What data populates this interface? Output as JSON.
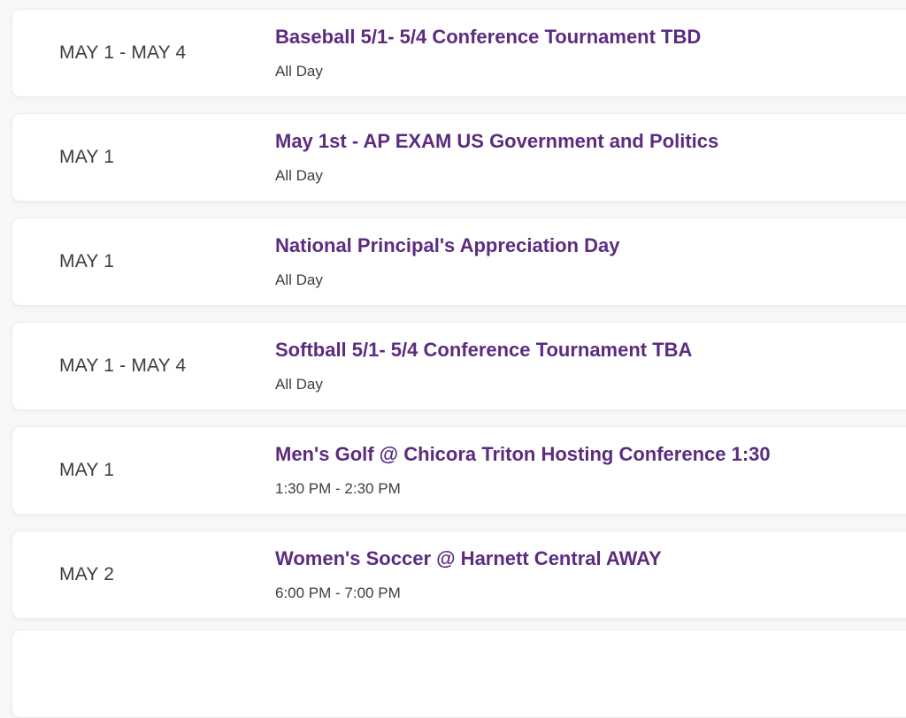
{
  "colors": {
    "accent_purple": "#5b2c7f",
    "text_gray": "#3e3e3e",
    "page_background": "#f7f7f8",
    "card_background": "#ffffff",
    "card_border": "#ededed"
  },
  "events": [
    {
      "date": "MAY 1 - MAY 4",
      "title": "Baseball 5/1- 5/4 Conference Tournament TBD",
      "time": "All Day"
    },
    {
      "date": "MAY 1",
      "title": "May 1st - AP EXAM US Government and Politics",
      "time": "All Day"
    },
    {
      "date": "MAY 1",
      "title": "National Principal's Appreciation Day",
      "time": "All Day"
    },
    {
      "date": "MAY 1 - MAY 4",
      "title": "Softball 5/1- 5/4 Conference Tournament TBA",
      "time": "All Day"
    },
    {
      "date": "MAY 1",
      "title": "Men's Golf @ Chicora Triton Hosting Conference 1:30",
      "time": "1:30 PM - 2:30 PM"
    },
    {
      "date": "MAY 2",
      "title": "Women's Soccer @ Harnett Central AWAY",
      "time": "6:00 PM - 7:00 PM"
    }
  ]
}
